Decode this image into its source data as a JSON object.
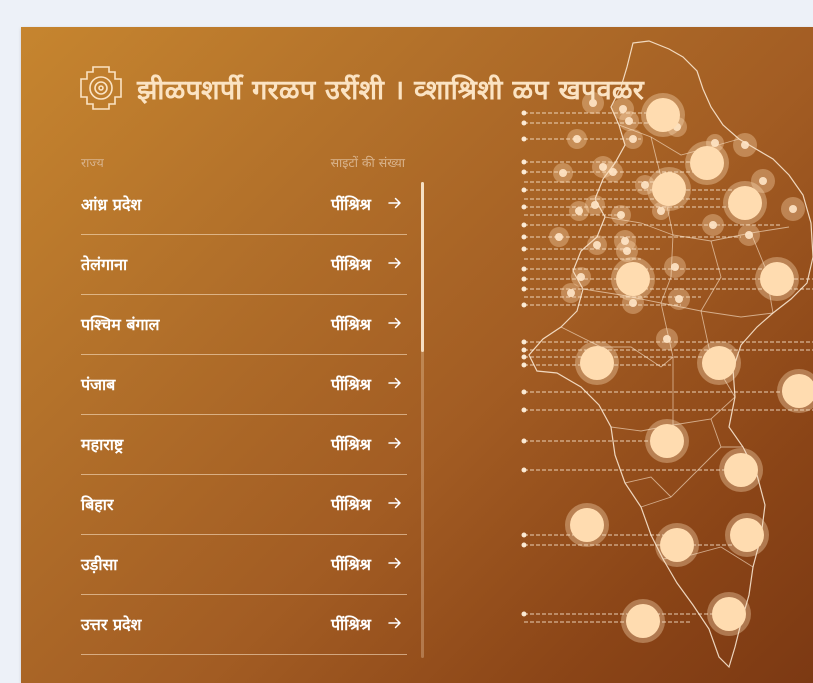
{
  "header": {
    "title": "झीळपशर्पी गरळप उर्रीशी । व्शाश्रिशी ळप खपवळर",
    "logo_icon": "shrine-emblem-icon"
  },
  "columns": {
    "left": "राज्य",
    "right": "साइटों की संख्या"
  },
  "states": [
    {
      "name": "आंध्र प्रदेश",
      "count": "पींश्रिश्र"
    },
    {
      "name": "तेलंगाना",
      "count": "पींश्रिश्र"
    },
    {
      "name": "पश्चिम बंगाल",
      "count": "पींश्रिश्र"
    },
    {
      "name": "पंजाब",
      "count": "पींश्रिश्र"
    },
    {
      "name": "महाराष्ट्र",
      "count": "पींश्रिश्र"
    },
    {
      "name": "बिहार",
      "count": "पींश्रिश्र"
    },
    {
      "name": "उड़ीसा",
      "count": "पींश्रिश्र"
    },
    {
      "name": "उत्तर प्रदेश",
      "count": "पींश्रिश्र"
    }
  ],
  "icons": {
    "row_arrow": "arrow-right-icon"
  },
  "colors": {
    "gradient_start": "#c6852f",
    "gradient_end": "#7c3913",
    "title": "#fbe3c3",
    "marker": "#ffdcb0"
  }
}
